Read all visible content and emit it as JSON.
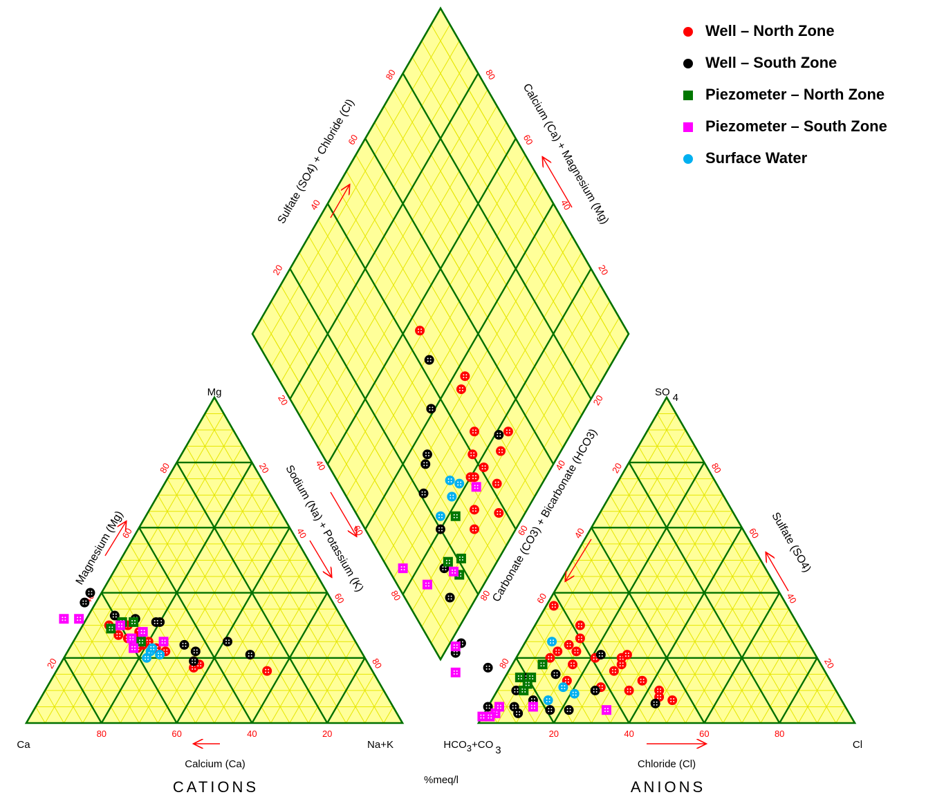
{
  "chart_data": {
    "type": "scatter",
    "subtype": "piper-diagram",
    "units_label": "%meq/l",
    "cation_triangle": {
      "title": "CATIONS",
      "apex_labels": {
        "left": "Ca",
        "top": "Mg",
        "right": "Na+K"
      },
      "axis_labels": {
        "bottom": "Calcium (Ca)",
        "left": "Magnesium (Mg)",
        "right": "Sodium (Na) + Potassium (K)"
      },
      "tick_labels": [
        "20",
        "40",
        "60",
        "80"
      ]
    },
    "anion_triangle": {
      "title": "ANIONS",
      "apex_labels": {
        "left_main": "HCO",
        "left_sub1": "3",
        "left_mid": "+CO",
        "left_sub2": "3",
        "top_main": "SO",
        "top_sub": "4",
        "right": "Cl"
      },
      "axis_labels": {
        "bottom": "Chloride (Cl)",
        "left": "Carbonate (CO3) + Bicarbonate (HCO3)",
        "right": "Sulfate (SO4)"
      },
      "tick_labels": [
        "20",
        "40",
        "60",
        "80"
      ]
    },
    "diamond": {
      "axis_labels": {
        "upper_left": "Sulfate (SO4) + Chloride (Cl)",
        "upper_right": "Calcium (Ca) + Magnesium (Mg)"
      },
      "tick_labels": [
        "20",
        "40",
        "60",
        "80"
      ]
    },
    "colors": {
      "frame": "#007000",
      "grid": "#e6e600",
      "fill": "#ffff99",
      "tick_label": "#ff0000",
      "arrow": "#ff0000"
    },
    "series": [
      {
        "name": "Well – North Zone",
        "marker": "circle",
        "color": "#ff0000",
        "cation_points": [
          [
            63,
            30,
            7
          ],
          [
            58,
            30,
            12
          ],
          [
            56,
            28,
            16
          ],
          [
            62,
            27,
            11
          ],
          [
            60,
            26,
            14
          ],
          [
            55,
            25,
            20
          ],
          [
            57,
            24,
            19
          ],
          [
            54,
            23,
            23
          ],
          [
            59,
            23,
            18
          ],
          [
            52,
            22,
            26
          ],
          [
            47,
            17,
            36
          ],
          [
            45,
            18,
            37
          ],
          [
            28,
            16,
            56
          ],
          [
            56,
            27,
            17
          ]
        ],
        "anion_points": [
          [
            62,
            36,
            2
          ],
          [
            58,
            30,
            12
          ],
          [
            52,
            20,
            28
          ],
          [
            71,
            20,
            9
          ],
          [
            68,
            22,
            10
          ],
          [
            64,
            24,
            12
          ],
          [
            63,
            22,
            15
          ],
          [
            60,
            26,
            14
          ],
          [
            59,
            20,
            21
          ],
          [
            56,
            16,
            28
          ],
          [
            53,
            18,
            29
          ],
          [
            50,
            13,
            37
          ],
          [
            55,
            10,
            35
          ],
          [
            47,
            10,
            43
          ],
          [
            45,
            7,
            48
          ],
          [
            66,
            18,
            16
          ],
          [
            70,
            13,
            17
          ],
          [
            62,
            11,
            27
          ],
          [
            50,
            21,
            29
          ],
          [
            48,
            8,
            44
          ]
        ]
      },
      {
        "name": "Well – South Zone",
        "marker": "circle",
        "color": "#000000",
        "cation_points": [
          [
            63,
            40,
            -3
          ],
          [
            66,
            37,
            -3
          ],
          [
            60,
            33,
            7
          ],
          [
            55,
            32,
            13
          ],
          [
            49,
            31,
            20
          ],
          [
            46,
            24,
            30
          ],
          [
            44,
            22,
            34
          ],
          [
            46,
            19,
            35
          ],
          [
            34,
            25,
            41
          ],
          [
            30,
            21,
            49
          ],
          [
            50,
            31,
            19
          ]
        ],
        "anion_points": [
          [
            95,
            5,
            0
          ],
          [
            92,
            5,
            3
          ],
          [
            88,
            5,
            7
          ],
          [
            85,
            10,
            5
          ],
          [
            80,
            14,
            6
          ],
          [
            79,
            4,
            17
          ],
          [
            74,
            4,
            22
          ],
          [
            72,
            15,
            13
          ],
          [
            64,
            10,
            26
          ],
          [
            57,
            21,
            22
          ],
          [
            50,
            6,
            44
          ],
          [
            89,
            17,
            -6
          ],
          [
            82,
            7,
            11
          ],
          [
            88,
            3,
            9
          ]
        ]
      },
      {
        "name": "Piezometer – North Zone",
        "marker": "square",
        "color": "#007700",
        "cation_points": [
          [
            63,
            29,
            8
          ],
          [
            59,
            31,
            10
          ],
          [
            57,
            25,
            18
          ],
          [
            56,
            31,
            13
          ]
        ],
        "anion_points": [
          [
            82,
            14,
            4
          ],
          [
            79,
            14,
            7
          ],
          [
            74,
            18,
            8
          ],
          [
            83,
            10,
            7
          ],
          [
            81,
            12,
            7
          ]
        ]
      },
      {
        "name": "Piezometer – South Zone",
        "marker": "square",
        "color": "#ff00ff",
        "cation_points": [
          [
            74,
            32,
            -6
          ],
          [
            70,
            32,
            -2
          ],
          [
            59,
            26,
            15
          ],
          [
            60,
            30,
            10
          ],
          [
            55,
            28,
            17
          ],
          [
            51,
            25,
            24
          ],
          [
            60,
            23,
            17
          ]
        ],
        "anion_points": [
          [
            98,
            2,
            0
          ],
          [
            94,
            3,
            3
          ],
          [
            92,
            5,
            3
          ],
          [
            83,
            5,
            12
          ],
          [
            64,
            4,
            32
          ],
          [
            96,
            2,
            2
          ]
        ]
      },
      {
        "name": "Surface Water",
        "marker": "circle",
        "color": "#00b0f0",
        "cation_points": [
          [
            58,
            20,
            22
          ],
          [
            56,
            22,
            22
          ],
          [
            54,
            21,
            25
          ],
          [
            55,
            23,
            22
          ]
        ],
        "anion_points": [
          [
            68,
            25,
            7
          ],
          [
            72,
            11,
            17
          ],
          [
            70,
            9,
            21
          ],
          [
            78,
            7,
            15
          ]
        ]
      }
    ]
  }
}
